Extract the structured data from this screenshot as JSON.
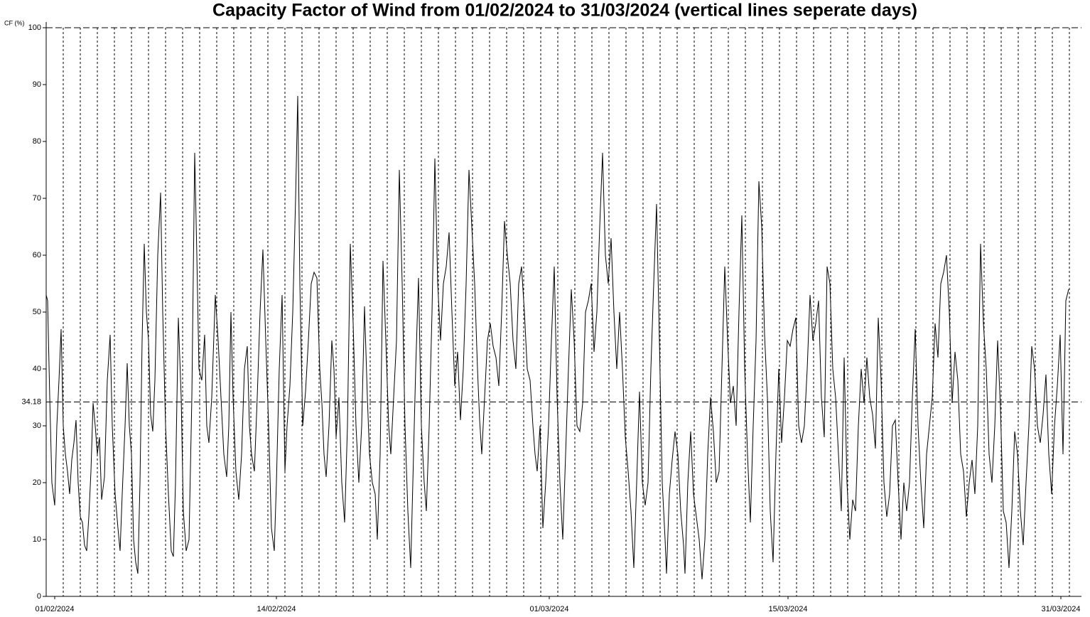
{
  "chart_data": {
    "type": "line",
    "title": "Capacity Factor of Wind from 01/02/2024 to 31/03/2024 (vertical lines seperate days)",
    "y_label": "CF (%)",
    "color": "#000000",
    "xlim": [
      0,
      1457
    ],
    "xticks": [
      {
        "value": 12,
        "label": "01/02/2024"
      },
      {
        "value": 324,
        "label": "14/02/2024"
      },
      {
        "value": 708,
        "label": "01/03/2024"
      },
      {
        "value": 1044,
        "label": "15/03/2024"
      },
      {
        "value": 1428,
        "label": "31/03/2024"
      }
    ],
    "day_lines": [
      24,
      48,
      72,
      96,
      120,
      144,
      168,
      192,
      216,
      240,
      264,
      288,
      312,
      336,
      360,
      384,
      408,
      432,
      456,
      480,
      504,
      528,
      552,
      576,
      600,
      624,
      648,
      672,
      696,
      720,
      744,
      768,
      792,
      816,
      840,
      864,
      888,
      912,
      936,
      960,
      984,
      1008,
      1032,
      1056,
      1080,
      1104,
      1128,
      1152,
      1176,
      1200,
      1224,
      1248,
      1272,
      1296,
      1320,
      1344,
      1368,
      1392,
      1416,
      1440
    ],
    "ylim": [
      0,
      100
    ],
    "yticks": [
      0,
      10,
      20,
      30,
      40,
      50,
      60,
      70,
      80,
      90,
      100
    ],
    "reference_lines": [
      100,
      34.18
    ],
    "x": [
      0,
      2,
      5,
      8,
      12,
      15,
      18,
      21,
      24,
      27,
      30,
      33,
      36,
      39,
      42,
      45,
      48,
      51,
      54,
      57,
      60,
      63,
      66,
      69,
      72,
      75,
      78,
      82,
      86,
      90,
      93,
      97,
      101,
      104,
      107,
      111,
      114,
      117,
      120,
      123,
      126,
      129,
      132,
      135,
      138,
      141,
      144,
      147,
      150,
      153,
      157,
      161,
      164,
      168,
      172,
      176,
      179,
      182,
      186,
      190,
      193,
      197,
      201,
      205,
      209,
      212,
      215,
      219,
      223,
      226,
      229,
      233,
      238,
      242,
      246,
      250,
      254,
      257,
      260,
      263,
      267,
      271,
      275,
      279,
      283,
      286,
      289,
      293,
      297,
      301,
      305,
      309,
      313,
      317,
      321,
      324,
      328,
      332,
      336,
      339,
      343,
      347,
      351,
      354,
      357,
      361,
      365,
      369,
      373,
      377,
      381,
      385,
      388,
      391,
      394,
      398,
      402,
      405,
      408,
      412,
      416,
      420,
      424,
      428,
      432,
      436,
      440,
      444,
      448,
      452,
      455,
      459,
      463,
      466,
      470,
      474,
      478,
      482,
      485,
      489,
      493,
      497,
      501,
      505,
      509,
      513,
      517,
      520,
      524,
      528,
      532,
      535,
      539,
      543,
      547,
      551,
      555,
      559,
      563,
      567,
      571,
      575,
      579,
      583,
      587,
      591,
      595,
      599,
      603,
      607,
      610,
      613,
      617,
      621,
      625,
      629,
      633,
      637,
      641,
      645,
      649,
      653,
      657,
      661,
      665,
      669,
      673,
      677,
      681,
      685,
      688,
      691,
      695,
      699,
      703,
      707,
      711,
      715,
      719,
      723,
      727,
      731,
      735,
      739,
      743,
      747,
      751,
      755,
      759,
      763,
      767,
      771,
      775,
      779,
      783,
      787,
      791,
      795,
      799,
      803,
      807,
      811,
      815,
      819,
      823,
      827,
      831,
      835,
      839,
      843,
      847,
      851,
      855,
      859,
      863,
      867,
      871,
      873,
      877,
      881,
      885,
      889,
      893,
      897,
      899,
      903,
      907,
      911,
      915,
      919,
      923,
      927,
      931,
      935,
      939,
      943,
      947,
      951,
      955,
      959,
      963,
      967,
      971,
      975,
      979,
      983,
      987,
      991,
      995,
      999,
      1003,
      1007,
      1011,
      1015,
      1019,
      1023,
      1027,
      1031,
      1035,
      1039,
      1043,
      1047,
      1051,
      1055,
      1059,
      1063,
      1067,
      1071,
      1075,
      1079,
      1083,
      1087,
      1091,
      1095,
      1099,
      1103,
      1107,
      1111,
      1115,
      1119,
      1123,
      1127,
      1131,
      1135,
      1139,
      1143,
      1147,
      1151,
      1155,
      1159,
      1163,
      1167,
      1171,
      1175,
      1179,
      1183,
      1187,
      1191,
      1195,
      1199,
      1203,
      1207,
      1211,
      1215,
      1219,
      1223,
      1227,
      1231,
      1235,
      1239,
      1243,
      1247,
      1251,
      1255,
      1259,
      1263,
      1267,
      1271,
      1275,
      1279,
      1283,
      1287,
      1291,
      1295,
      1299,
      1303,
      1307,
      1311,
      1315,
      1319,
      1323,
      1327,
      1331,
      1335,
      1339,
      1343,
      1347,
      1351,
      1355,
      1359,
      1363,
      1367,
      1371,
      1375,
      1379,
      1383,
      1387,
      1391,
      1395,
      1399,
      1403,
      1407,
      1411,
      1415,
      1419,
      1423,
      1427,
      1431,
      1435,
      1439
    ],
    "values": [
      53,
      52,
      35,
      20,
      16,
      30,
      38,
      47,
      30,
      25,
      22,
      18,
      24,
      27,
      31,
      20,
      14,
      13,
      9,
      8,
      14,
      22,
      34,
      30,
      25,
      28,
      17,
      21,
      38,
      46,
      30,
      18,
      12,
      8,
      18,
      30,
      41,
      30,
      25,
      10,
      6,
      4,
      20,
      45,
      62,
      50,
      45,
      32,
      29,
      38,
      60,
      71,
      50,
      30,
      18,
      8,
      7,
      20,
      49,
      35,
      15,
      8,
      10,
      35,
      78,
      60,
      40,
      38,
      46,
      30,
      27,
      35,
      53,
      45,
      35,
      25,
      21,
      30,
      50,
      35,
      22,
      17,
      25,
      40,
      44,
      30,
      25,
      22,
      35,
      50,
      61,
      45,
      30,
      12,
      8,
      20,
      40,
      53,
      22,
      30,
      37,
      50,
      70,
      88,
      55,
      30,
      36,
      45,
      55,
      57,
      56,
      40,
      34,
      25,
      21,
      30,
      45,
      40,
      28,
      35,
      20,
      13,
      30,
      62,
      48,
      30,
      20,
      30,
      51,
      35,
      25,
      20,
      18,
      10,
      25,
      59,
      45,
      30,
      25,
      35,
      45,
      75,
      55,
      30,
      15,
      5,
      25,
      40,
      56,
      30,
      20,
      15,
      30,
      50,
      77,
      55,
      45,
      55,
      58,
      64,
      50,
      37,
      43,
      31,
      40,
      55,
      75,
      65,
      55,
      40,
      31,
      25,
      35,
      45,
      48,
      44,
      42,
      37,
      50,
      66,
      60,
      55,
      45,
      40,
      55,
      58,
      50,
      40,
      38,
      30,
      25,
      22,
      30,
      12,
      20,
      30,
      45,
      58,
      35,
      20,
      10,
      25,
      40,
      54,
      45,
      30,
      29,
      34,
      50,
      52,
      55,
      43,
      50,
      65,
      78,
      60,
      55,
      63,
      50,
      40,
      50,
      40,
      28,
      22,
      15,
      5,
      20,
      36,
      20,
      16,
      20,
      40,
      55,
      69,
      45,
      20,
      10,
      4,
      18,
      24,
      29,
      25,
      15,
      9,
      4,
      20,
      29,
      18,
      14,
      10,
      3,
      10,
      25,
      35,
      29,
      20,
      22,
      40,
      58,
      45,
      34,
      37,
      30,
      50,
      67,
      40,
      25,
      13,
      30,
      45,
      73,
      65,
      46,
      35,
      15,
      6,
      25,
      40,
      27,
      35,
      45,
      44,
      47,
      49,
      30,
      27,
      30,
      40,
      53,
      45,
      48,
      52,
      35,
      28,
      58,
      55,
      40,
      35,
      25,
      15,
      42,
      20,
      10,
      17,
      15,
      30,
      40,
      34,
      42,
      35,
      32,
      26,
      49,
      38,
      20,
      14,
      18,
      30,
      31,
      20,
      10,
      20,
      15,
      20,
      35,
      47,
      30,
      20,
      12,
      25,
      30,
      35,
      48,
      42,
      55,
      57,
      60,
      50,
      34,
      43,
      38,
      25,
      22,
      14,
      20,
      24,
      18,
      30,
      62,
      48,
      40,
      25,
      20,
      30,
      45,
      33,
      15,
      13,
      5,
      15,
      29,
      25,
      15,
      9,
      20,
      30,
      44,
      40,
      30,
      27,
      32,
      39,
      25,
      18,
      30,
      37,
      46,
      25,
      52,
      54
    ]
  }
}
